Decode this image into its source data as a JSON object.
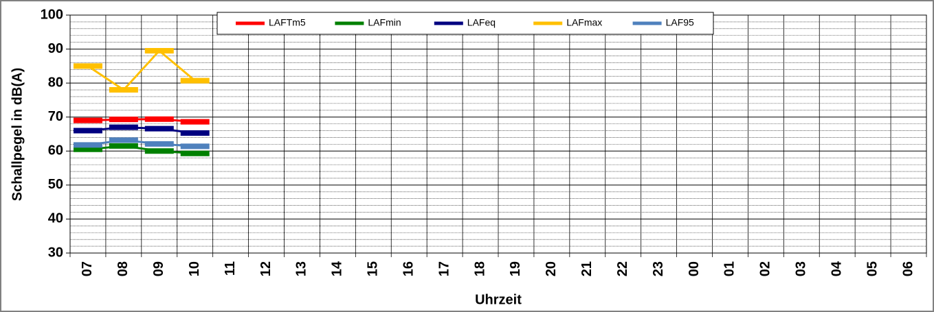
{
  "chart_data": {
    "type": "line",
    "y_label": "Schallpegel in dB(A)",
    "x_label": "Uhrzeit",
    "categories": [
      "07",
      "08",
      "09",
      "10",
      "11",
      "12",
      "13",
      "14",
      "15",
      "16",
      "17",
      "18",
      "19",
      "20",
      "21",
      "22",
      "23",
      "00",
      "01",
      "02",
      "03",
      "04",
      "05",
      "06"
    ],
    "series": [
      {
        "name": "LAFTm5",
        "color": "#ff0000",
        "values": [
          69,
          69.3,
          69.4,
          68.6,
          null,
          null,
          null,
          null,
          null,
          null,
          null,
          null,
          null,
          null,
          null,
          null,
          null,
          null,
          null,
          null,
          null,
          null,
          null,
          null
        ]
      },
      {
        "name": "LAFmin",
        "color": "#008000",
        "values": [
          60.5,
          61.5,
          60,
          59.3,
          null,
          null,
          null,
          null,
          null,
          null,
          null,
          null,
          null,
          null,
          null,
          null,
          null,
          null,
          null,
          null,
          null,
          null,
          null,
          null
        ]
      },
      {
        "name": "LAFeq",
        "color": "#000080",
        "values": [
          66,
          67,
          66.6,
          65.3,
          null,
          null,
          null,
          null,
          null,
          null,
          null,
          null,
          null,
          null,
          null,
          null,
          null,
          null,
          null,
          null,
          null,
          null,
          null,
          null
        ]
      },
      {
        "name": "LAFmax",
        "color": "#ffc000",
        "values": [
          85,
          78,
          89.5,
          80.7,
          null,
          null,
          null,
          null,
          null,
          null,
          null,
          null,
          null,
          null,
          null,
          null,
          null,
          null,
          null,
          null,
          null,
          null,
          null,
          null
        ]
      },
      {
        "name": "LAF95",
        "color": "#4f81bd",
        "values": [
          61.8,
          63.2,
          62.1,
          61.4,
          null,
          null,
          null,
          null,
          null,
          null,
          null,
          null,
          null,
          null,
          null,
          null,
          null,
          null,
          null,
          null,
          null,
          null,
          null,
          null
        ]
      }
    ],
    "ylim": [
      30,
      100
    ],
    "yticks": [
      30,
      40,
      50,
      60,
      70,
      80,
      90,
      100
    ],
    "minor_yticks": [
      32,
      34,
      36,
      38,
      42,
      44,
      46,
      48,
      52,
      54,
      56,
      58,
      62,
      64,
      66,
      68,
      72,
      74,
      76,
      78,
      82,
      84,
      86,
      88,
      92,
      94,
      96,
      98
    ],
    "grid": true,
    "legend": "top"
  }
}
